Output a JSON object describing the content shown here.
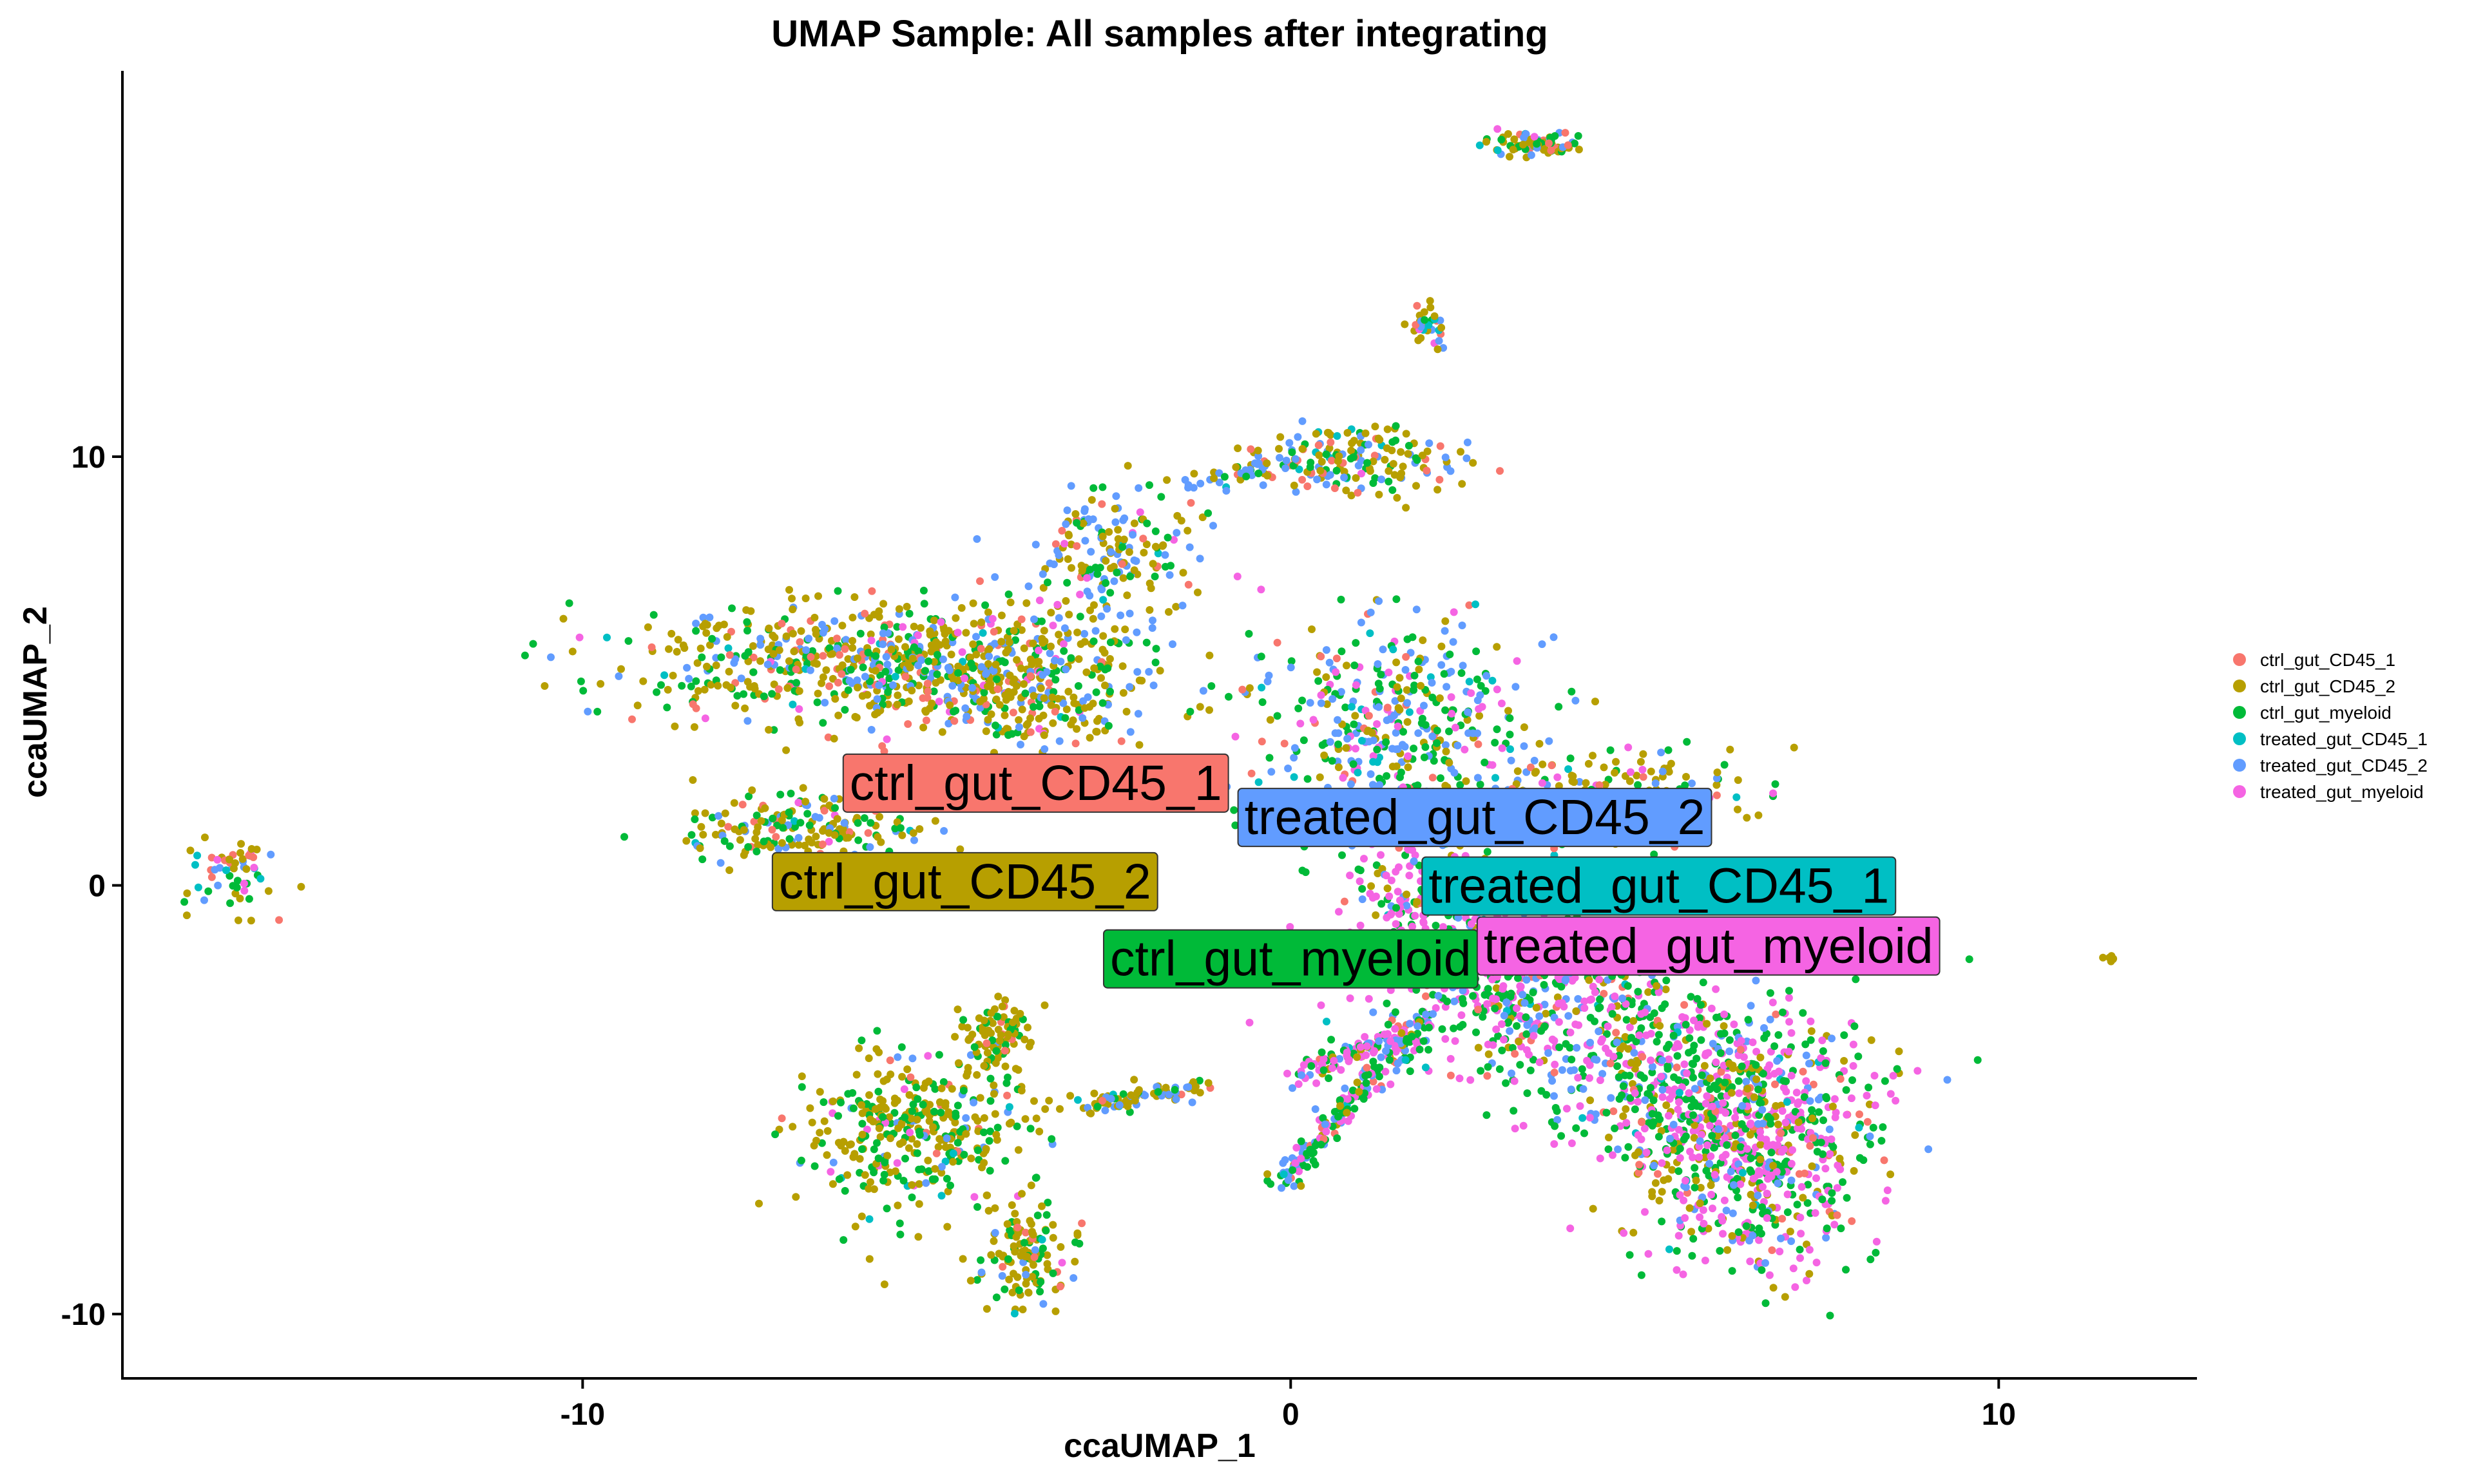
{
  "chart_data": {
    "type": "scatter",
    "title": "UMAP Sample: All samples after integrating",
    "xlabel": "ccaUMAP_1",
    "ylabel": "ccaUMAP_2",
    "xlim": [
      -16.5,
      12.8
    ],
    "ylim": [
      -11.5,
      19.0
    ],
    "xticks": [
      -10,
      0,
      10
    ],
    "xtick_labels": [
      "-10",
      "0",
      "10"
    ],
    "yticks": [
      -10,
      0,
      10
    ],
    "ytick_labels": [
      "-10",
      "0",
      "10"
    ],
    "grid": false,
    "legend_position": "right",
    "series": [
      {
        "name": "ctrl_gut_CD45_1",
        "color": "#F8766D",
        "label_pos": [
          -3.6,
          2.4
        ]
      },
      {
        "name": "ctrl_gut_CD45_2",
        "color": "#B79F00",
        "label_pos": [
          -4.6,
          0.1
        ]
      },
      {
        "name": "ctrl_gut_myeloid",
        "color": "#00BA38",
        "label_pos": [
          0.0,
          -1.7
        ]
      },
      {
        "name": "treated_gut_CD45_1",
        "color": "#00BFC4",
        "label_pos": [
          5.2,
          0.0
        ]
      },
      {
        "name": "treated_gut_CD45_2",
        "color": "#619CFF",
        "label_pos": [
          2.6,
          1.6
        ]
      },
      {
        "name": "treated_gut_myeloid",
        "color": "#F564E3",
        "label_pos": [
          5.9,
          -1.4
        ]
      }
    ],
    "clusters": [
      {
        "cx": -15.0,
        "cy": 0.2,
        "sx": 0.35,
        "sy": 0.45,
        "n": 60,
        "w": [
          0.2,
          0.25,
          0.15,
          0.1,
          0.2,
          0.1
        ]
      },
      {
        "cx": -6.5,
        "cy": 5.2,
        "sx": 1.5,
        "sy": 0.7,
        "n": 480,
        "w": [
          0.1,
          0.45,
          0.25,
          0.02,
          0.15,
          0.03
        ]
      },
      {
        "cx": -4.0,
        "cy": 4.8,
        "sx": 1.2,
        "sy": 0.8,
        "n": 420,
        "w": [
          0.08,
          0.45,
          0.2,
          0.02,
          0.2,
          0.05
        ]
      },
      {
        "cx": -2.5,
        "cy": 7.8,
        "sx": 0.6,
        "sy": 0.7,
        "n": 180,
        "w": [
          0.08,
          0.35,
          0.15,
          0.02,
          0.35,
          0.05
        ]
      },
      {
        "cx": -6.8,
        "cy": 1.4,
        "sx": 0.9,
        "sy": 0.4,
        "n": 200,
        "w": [
          0.1,
          0.5,
          0.25,
          0.02,
          0.1,
          0.03
        ]
      },
      {
        "cx": -5.2,
        "cy": -5.8,
        "sx": 0.8,
        "sy": 0.9,
        "n": 380,
        "w": [
          0.06,
          0.55,
          0.3,
          0.02,
          0.05,
          0.02
        ]
      },
      {
        "cx": -4.2,
        "cy": -3.5,
        "sx": 0.25,
        "sy": 0.4,
        "n": 90,
        "w": [
          0.05,
          0.6,
          0.3,
          0.0,
          0.05,
          0.0
        ]
      },
      {
        "cx": -3.8,
        "cy": -8.6,
        "sx": 0.3,
        "sy": 0.6,
        "n": 130,
        "w": [
          0.05,
          0.55,
          0.3,
          0.02,
          0.06,
          0.02
        ]
      },
      {
        "cx": 0.9,
        "cy": 9.9,
        "sx": 0.7,
        "sy": 0.35,
        "n": 170,
        "w": [
          0.15,
          0.4,
          0.15,
          0.03,
          0.25,
          0.02
        ]
      },
      {
        "cx": 2.0,
        "cy": 13.0,
        "sx": 0.15,
        "sy": 0.25,
        "n": 35,
        "w": [
          0.2,
          0.45,
          0.1,
          0.05,
          0.15,
          0.05
        ]
      },
      {
        "cx": 3.5,
        "cy": 17.3,
        "sx": 0.3,
        "sy": 0.15,
        "n": 80,
        "w": [
          0.15,
          0.35,
          0.3,
          0.05,
          0.1,
          0.05
        ]
      },
      {
        "cx": 1.5,
        "cy": 3.8,
        "sx": 1.0,
        "sy": 1.3,
        "n": 420,
        "w": [
          0.05,
          0.15,
          0.3,
          0.05,
          0.3,
          0.15
        ]
      },
      {
        "cx": 4.5,
        "cy": 2.0,
        "sx": 1.0,
        "sy": 0.6,
        "n": 220,
        "w": [
          0.08,
          0.5,
          0.2,
          0.03,
          0.1,
          0.09
        ]
      },
      {
        "cx": 2.2,
        "cy": -0.8,
        "sx": 0.8,
        "sy": 1.0,
        "n": 360,
        "w": [
          0.03,
          0.05,
          0.25,
          0.02,
          0.1,
          0.55
        ]
      },
      {
        "cx": 3.6,
        "cy": -2.6,
        "sx": 1.1,
        "sy": 0.9,
        "n": 420,
        "w": [
          0.04,
          0.1,
          0.4,
          0.02,
          0.14,
          0.3
        ]
      },
      {
        "cx": 6.5,
        "cy": -6.0,
        "sx": 0.9,
        "sy": 1.4,
        "n": 700,
        "w": [
          0.05,
          0.15,
          0.35,
          0.02,
          0.1,
          0.33
        ]
      },
      {
        "cx": 5.5,
        "cy": -4.5,
        "sx": 1.2,
        "sy": 1.0,
        "n": 350,
        "w": [
          0.05,
          0.12,
          0.38,
          0.02,
          0.15,
          0.28
        ]
      },
      {
        "cx": 11.6,
        "cy": -1.7,
        "sx": 0.05,
        "sy": 0.05,
        "n": 8,
        "w": [
          0.0,
          1.0,
          0.0,
          0.0,
          0.0,
          0.0
        ]
      }
    ],
    "strands": [
      {
        "x0": -3.0,
        "y0": -5.2,
        "x1": -1.3,
        "y1": -4.7,
        "n": 80,
        "w": [
          0.05,
          0.5,
          0.2,
          0.05,
          0.2,
          0.0
        ]
      },
      {
        "x0": -0.2,
        "y0": -7.0,
        "x1": 2.0,
        "y1": -3.0,
        "n": 200,
        "w": [
          0.05,
          0.1,
          0.35,
          0.02,
          0.23,
          0.25
        ]
      },
      {
        "x0": -1.5,
        "y0": 9.2,
        "x1": 0.0,
        "y1": 10.0,
        "n": 40,
        "w": [
          0.05,
          0.3,
          0.1,
          0.05,
          0.5,
          0.0
        ]
      },
      {
        "x0": 0.0,
        "y0": -4.5,
        "x1": 1.5,
        "y1": -3.5,
        "n": 90,
        "w": [
          0.05,
          0.1,
          0.2,
          0.02,
          0.13,
          0.5
        ]
      }
    ]
  }
}
